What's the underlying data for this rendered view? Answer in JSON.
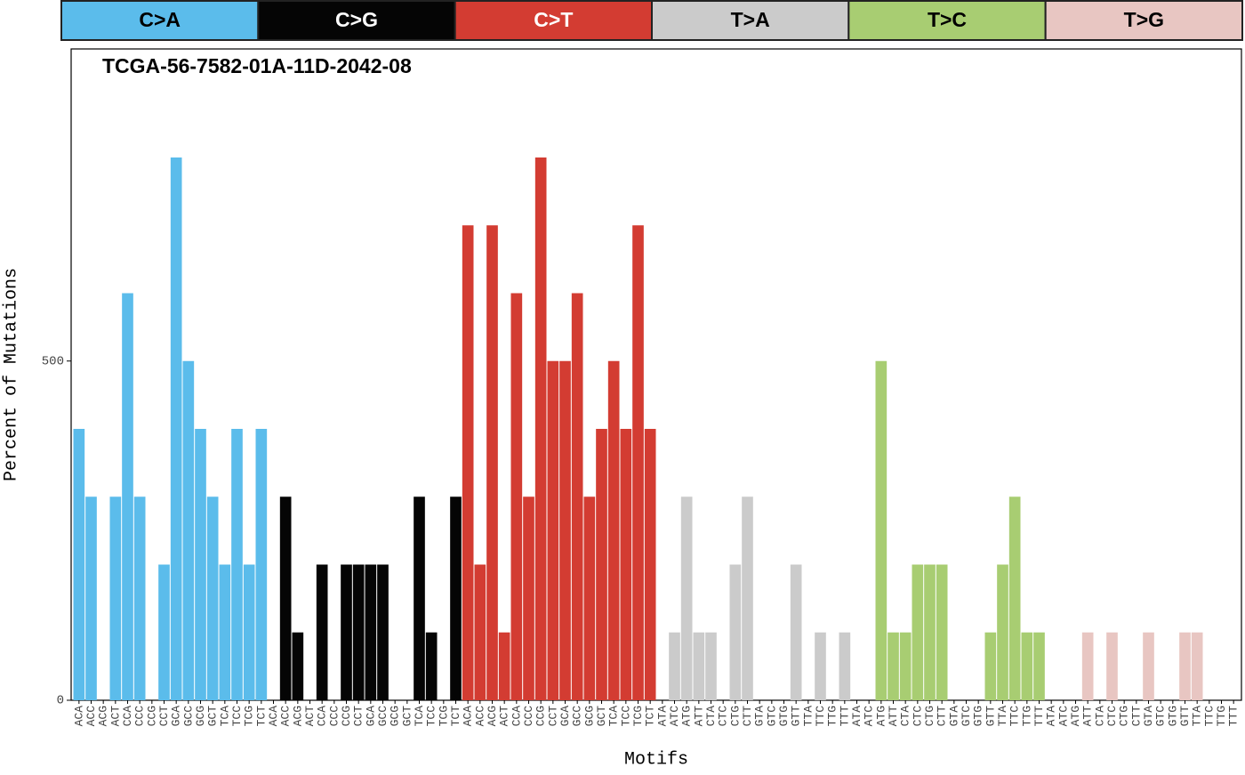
{
  "chart_data": {
    "type": "bar",
    "title": "TCGA-56-7582-01A-11D-2042-08",
    "x_label": "Motifs",
    "y_label": "Percent of Mutations",
    "ylim": [
      0,
      960
    ],
    "yticks": [
      0,
      500
    ],
    "series": [
      {
        "name": "C>A",
        "color": "#5bbceb",
        "categories": [
          "ACA",
          "ACC",
          "ACG",
          "ACT",
          "CCA",
          "CCC",
          "CCG",
          "CCT",
          "GCA",
          "GCC",
          "GCG",
          "GCT",
          "TCA",
          "TCC",
          "TCG",
          "TCT"
        ],
        "values": [
          400,
          300,
          0,
          300,
          600,
          300,
          0,
          200,
          800,
          500,
          400,
          300,
          200,
          400,
          200,
          400
        ]
      },
      {
        "name": "C>G",
        "color": "#050505",
        "categories": [
          "ACA",
          "ACC",
          "ACG",
          "ACT",
          "CCA",
          "CCC",
          "CCG",
          "CCT",
          "GCA",
          "GCC",
          "GCG",
          "GCT",
          "TCA",
          "TCC",
          "TCG",
          "TCT"
        ],
        "values": [
          0,
          300,
          100,
          0,
          200,
          0,
          200,
          200,
          200,
          200,
          0,
          0,
          300,
          100,
          0,
          300
        ]
      },
      {
        "name": "C>T",
        "color": "#d33c32",
        "categories": [
          "ACA",
          "ACC",
          "ACG",
          "ACT",
          "CCA",
          "CCC",
          "CCG",
          "CCT",
          "GCA",
          "GCC",
          "GCG",
          "GCT",
          "TCA",
          "TCC",
          "TCG",
          "TCT"
        ],
        "values": [
          700,
          200,
          700,
          100,
          600,
          300,
          800,
          500,
          500,
          600,
          300,
          400,
          500,
          400,
          700,
          400
        ]
      },
      {
        "name": "T>A",
        "color": "#cbcbcb",
        "categories": [
          "ATA",
          "ATC",
          "ATG",
          "ATT",
          "CTA",
          "CTC",
          "CTG",
          "CTT",
          "GTA",
          "GTC",
          "GTG",
          "GTT",
          "TTA",
          "TTC",
          "TTG",
          "TTT"
        ],
        "values": [
          0,
          100,
          300,
          100,
          100,
          0,
          200,
          300,
          0,
          0,
          0,
          200,
          0,
          100,
          0,
          100
        ]
      },
      {
        "name": "T>C",
        "color": "#a8cd72",
        "categories": [
          "ATA",
          "ATC",
          "ATG",
          "ATT",
          "CTA",
          "CTC",
          "CTG",
          "CTT",
          "GTA",
          "GTC",
          "GTG",
          "GTT",
          "TTA",
          "TTC",
          "TTG",
          "TTT"
        ],
        "values": [
          0,
          0,
          500,
          100,
          100,
          200,
          200,
          200,
          0,
          0,
          0,
          100,
          200,
          300,
          100,
          100
        ]
      },
      {
        "name": "T>G",
        "color": "#e8c6c2",
        "categories": [
          "ATA",
          "ATC",
          "ATG",
          "ATT",
          "CTA",
          "CTC",
          "CTG",
          "CTT",
          "GTA",
          "GTC",
          "GTG",
          "GTT",
          "TTA",
          "TTC",
          "TTG",
          "TTT"
        ],
        "values": [
          0,
          0,
          0,
          100,
          0,
          100,
          0,
          0,
          100,
          0,
          0,
          100,
          100,
          0,
          0,
          0
        ]
      }
    ]
  }
}
